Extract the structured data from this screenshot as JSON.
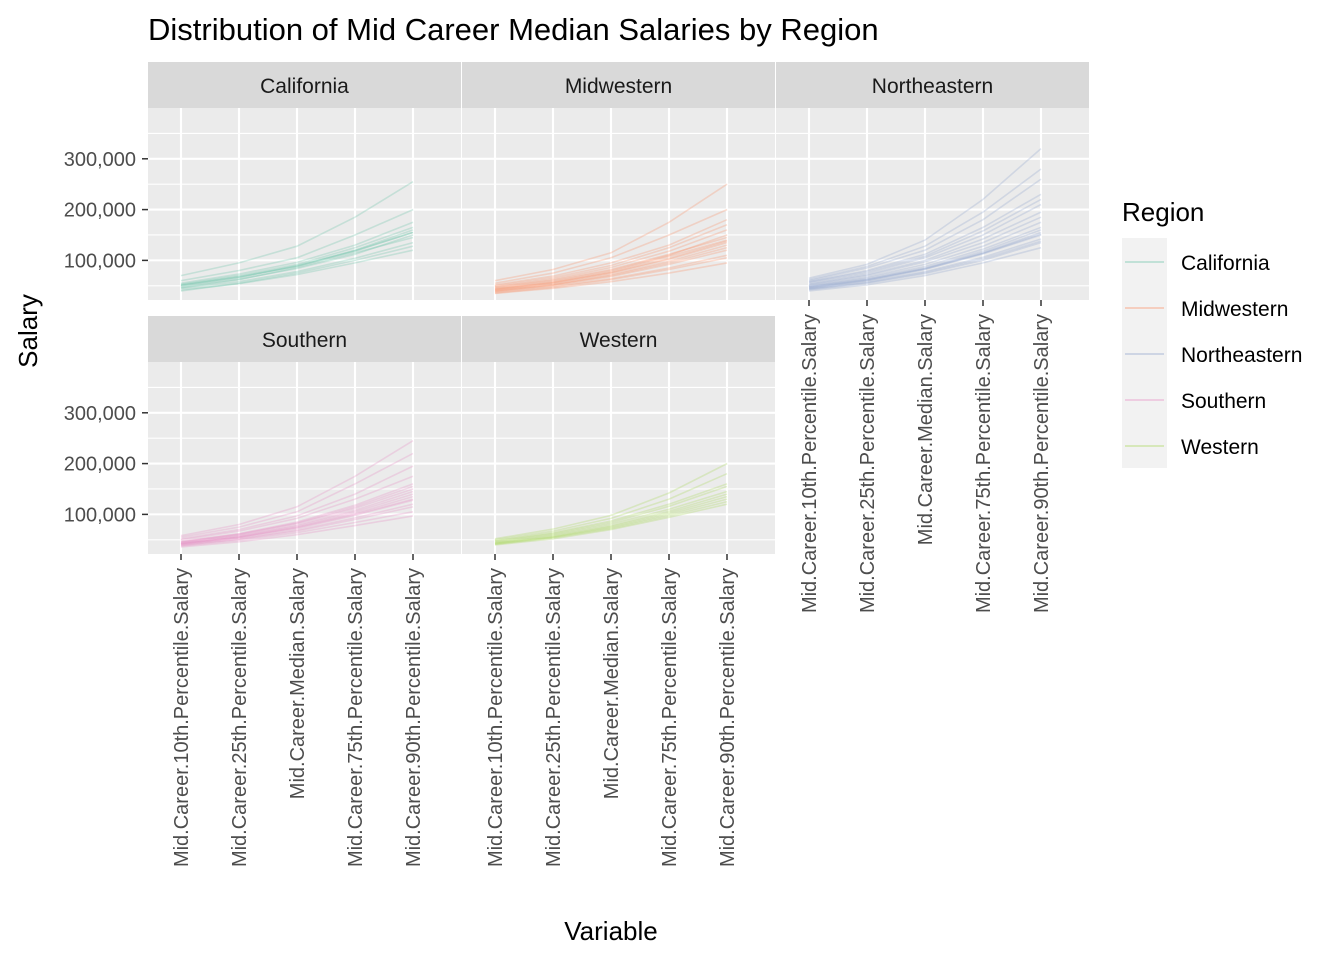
{
  "chart_data": {
    "type": "line",
    "title": "Distribution of Mid Career Median Salaries by Region",
    "xlabel": "Variable",
    "ylabel": "Salary",
    "categories": [
      "Mid.Career.10th.Percentile.Salary",
      "Mid.Career.25th.Percentile.Salary",
      "Mid.Career.Median.Salary",
      "Mid.Career.75th.Percentile.Salary",
      "Mid.Career.90th.Percentile.Salary"
    ],
    "y_ticks": [
      100000,
      200000,
      300000
    ],
    "y_tick_labels": [
      "100,000",
      "200,000",
      "300,000"
    ],
    "ylim": [
      22000,
      400000
    ],
    "grid": true,
    "legend": {
      "title": "Region",
      "position": "right",
      "entries": [
        "California",
        "Midwestern",
        "Northeastern",
        "Southern",
        "Western"
      ]
    },
    "facets": [
      {
        "region": "California",
        "color": "#66C2A5",
        "series": [
          {
            "values": [
              51000,
              67000,
              88000,
              119000,
              155000
            ]
          },
          {
            "values": [
              48000,
              63000,
              84000,
              112000,
              150000
            ]
          },
          {
            "values": [
              55000,
              73000,
              96000,
              130000,
              175000
            ]
          },
          {
            "values": [
              60000,
              80000,
              105000,
              150000,
              200000
            ]
          },
          {
            "values": [
              70000,
              95000,
              128000,
              185000,
              255000
            ]
          },
          {
            "values": [
              45000,
              58000,
              78000,
              104000,
              135000
            ]
          },
          {
            "values": [
              42000,
              54000,
              72000,
              95000,
              120000
            ]
          },
          {
            "values": [
              50000,
              66000,
              90000,
              120000,
              160000
            ]
          },
          {
            "values": [
              53000,
              70000,
              92000,
              125000,
              165000
            ]
          },
          {
            "values": [
              46000,
              62000,
              86000,
              115000,
              145000
            ]
          },
          {
            "values": [
              40000,
              55000,
              75000,
              100000,
              128000
            ]
          },
          {
            "values": [
              52000,
              68000,
              89000,
              118000,
              155000
            ]
          }
        ]
      },
      {
        "region": "Midwestern",
        "color": "#FC8D62",
        "series": [
          {
            "values": [
              45000,
              59000,
              80000,
              110000,
              150000
            ]
          },
          {
            "values": [
              40000,
              52000,
              70000,
              95000,
              125000
            ]
          },
          {
            "values": [
              50000,
              66000,
              90000,
              125000,
              170000
            ]
          },
          {
            "values": [
              55000,
              75000,
              105000,
              150000,
              200000
            ]
          },
          {
            "values": [
              60000,
              82000,
              115000,
              175000,
              250000
            ]
          },
          {
            "values": [
              38000,
              49000,
              64000,
              85000,
              110000
            ]
          },
          {
            "values": [
              35000,
              45000,
              58000,
              75000,
              95000
            ]
          },
          {
            "values": [
              42000,
              55000,
              75000,
              102000,
              135000
            ]
          },
          {
            "values": [
              47000,
              61000,
              82000,
              112000,
              145000
            ]
          },
          {
            "values": [
              44000,
              57000,
              78000,
              108000,
              140000
            ]
          },
          {
            "values": [
              52000,
              69000,
              95000,
              130000,
              180000
            ]
          },
          {
            "values": [
              41000,
              53000,
              72000,
              98000,
              130000
            ]
          },
          {
            "values": [
              39000,
              51000,
              68000,
              92000,
              120000
            ]
          },
          {
            "values": [
              48000,
              63000,
              86000,
              118000,
              160000
            ]
          },
          {
            "values": [
              36000,
              47000,
              62000,
              82000,
              105000
            ]
          },
          {
            "values": [
              43000,
              56000,
              76000,
              104000,
              138000
            ]
          }
        ]
      },
      {
        "region": "Northeastern",
        "color": "#8DA0CB",
        "series": [
          {
            "values": [
              48000,
              63000,
              85000,
              118000,
              160000
            ]
          },
          {
            "values": [
              45000,
              60000,
              82000,
              113000,
              150000
            ]
          },
          {
            "values": [
              55000,
              75000,
              105000,
              150000,
              210000
            ]
          },
          {
            "values": [
              60000,
              85000,
              120000,
              180000,
              260000
            ]
          },
          {
            "values": [
              65000,
              92000,
              140000,
              220000,
              320000
            ]
          },
          {
            "values": [
              42000,
              55000,
              74000,
              100000,
              135000
            ]
          },
          {
            "values": [
              40000,
              52000,
              70000,
              95000,
              125000
            ]
          },
          {
            "values": [
              50000,
              67000,
              92000,
              128000,
              175000
            ]
          },
          {
            "values": [
              52000,
              70000,
              97000,
              135000,
              185000
            ]
          },
          {
            "values": [
              47000,
              62000,
              84000,
              115000,
              155000
            ]
          },
          {
            "values": [
              58000,
              80000,
              112000,
              165000,
              230000
            ]
          },
          {
            "values": [
              44000,
              58000,
              78000,
              106000,
              142000
            ]
          },
          {
            "values": [
              46000,
              61000,
              83000,
              114000,
              152000
            ]
          },
          {
            "values": [
              62000,
              88000,
              128000,
              195000,
              280000
            ]
          },
          {
            "values": [
              43000,
              56000,
              76000,
              103000,
              138000
            ]
          },
          {
            "values": [
              53000,
              72000,
              100000,
              142000,
              195000
            ]
          },
          {
            "values": [
              49000,
              65000,
              88000,
              122000,
              165000
            ]
          },
          {
            "values": [
              57000,
              78000,
              108000,
              158000,
              220000
            ]
          }
        ]
      },
      {
        "region": "Southern",
        "color": "#E78AC3",
        "series": [
          {
            "values": [
              42000,
              55000,
              74000,
              100000,
              130000
            ]
          },
          {
            "values": [
              40000,
              52000,
              69000,
              93000,
              120000
            ]
          },
          {
            "values": [
              45000,
              60000,
              82000,
              112000,
              150000
            ]
          },
          {
            "values": [
              50000,
              67000,
              92000,
              130000,
              175000
            ]
          },
          {
            "values": [
              55000,
              75000,
              105000,
              160000,
              220000
            ]
          },
          {
            "values": [
              58000,
              80000,
              115000,
              175000,
              245000
            ]
          },
          {
            "values": [
              38000,
              49000,
              64000,
              84000,
              105000
            ]
          },
          {
            "values": [
              36000,
              46000,
              60000,
              78000,
              97000
            ]
          },
          {
            "values": [
              43000,
              57000,
              77000,
              105000,
              140000
            ]
          },
          {
            "values": [
              41000,
              54000,
              72000,
              98000,
              128000
            ]
          },
          {
            "values": [
              47000,
              62000,
              85000,
              118000,
              160000
            ]
          },
          {
            "values": [
              44000,
              58000,
              79000,
              108000,
              145000
            ]
          },
          {
            "values": [
              39000,
              51000,
              67000,
              90000,
              115000
            ]
          },
          {
            "values": [
              52000,
              70000,
              97000,
              140000,
              195000
            ]
          },
          {
            "values": [
              46000,
              61000,
              83000,
              115000,
              155000
            ]
          },
          {
            "values": [
              42000,
              55000,
              75000,
              102000,
              135000
            ]
          }
        ]
      },
      {
        "region": "Western",
        "color": "#A6D854",
        "series": [
          {
            "values": [
              44000,
              58000,
              78000,
              106000,
              140000
            ]
          },
          {
            "values": [
              42000,
              55000,
              74000,
              100000,
              130000
            ]
          },
          {
            "values": [
              47000,
              62000,
              84000,
              116000,
              155000
            ]
          },
          {
            "values": [
              50000,
              67000,
              92000,
              130000,
              180000
            ]
          },
          {
            "values": [
              52000,
              71000,
              98000,
              142000,
              200000
            ]
          },
          {
            "values": [
              40000,
              52000,
              70000,
              94000,
              120000
            ]
          },
          {
            "values": [
              45000,
              60000,
              81000,
              110000,
              145000
            ]
          },
          {
            "values": [
              43000,
              56000,
              76000,
              103000,
              135000
            ]
          },
          {
            "values": [
              48000,
              64000,
              87000,
              120000,
              160000
            ]
          },
          {
            "values": [
              41000,
              54000,
              72000,
              97000,
              125000
            ]
          }
        ]
      }
    ]
  }
}
